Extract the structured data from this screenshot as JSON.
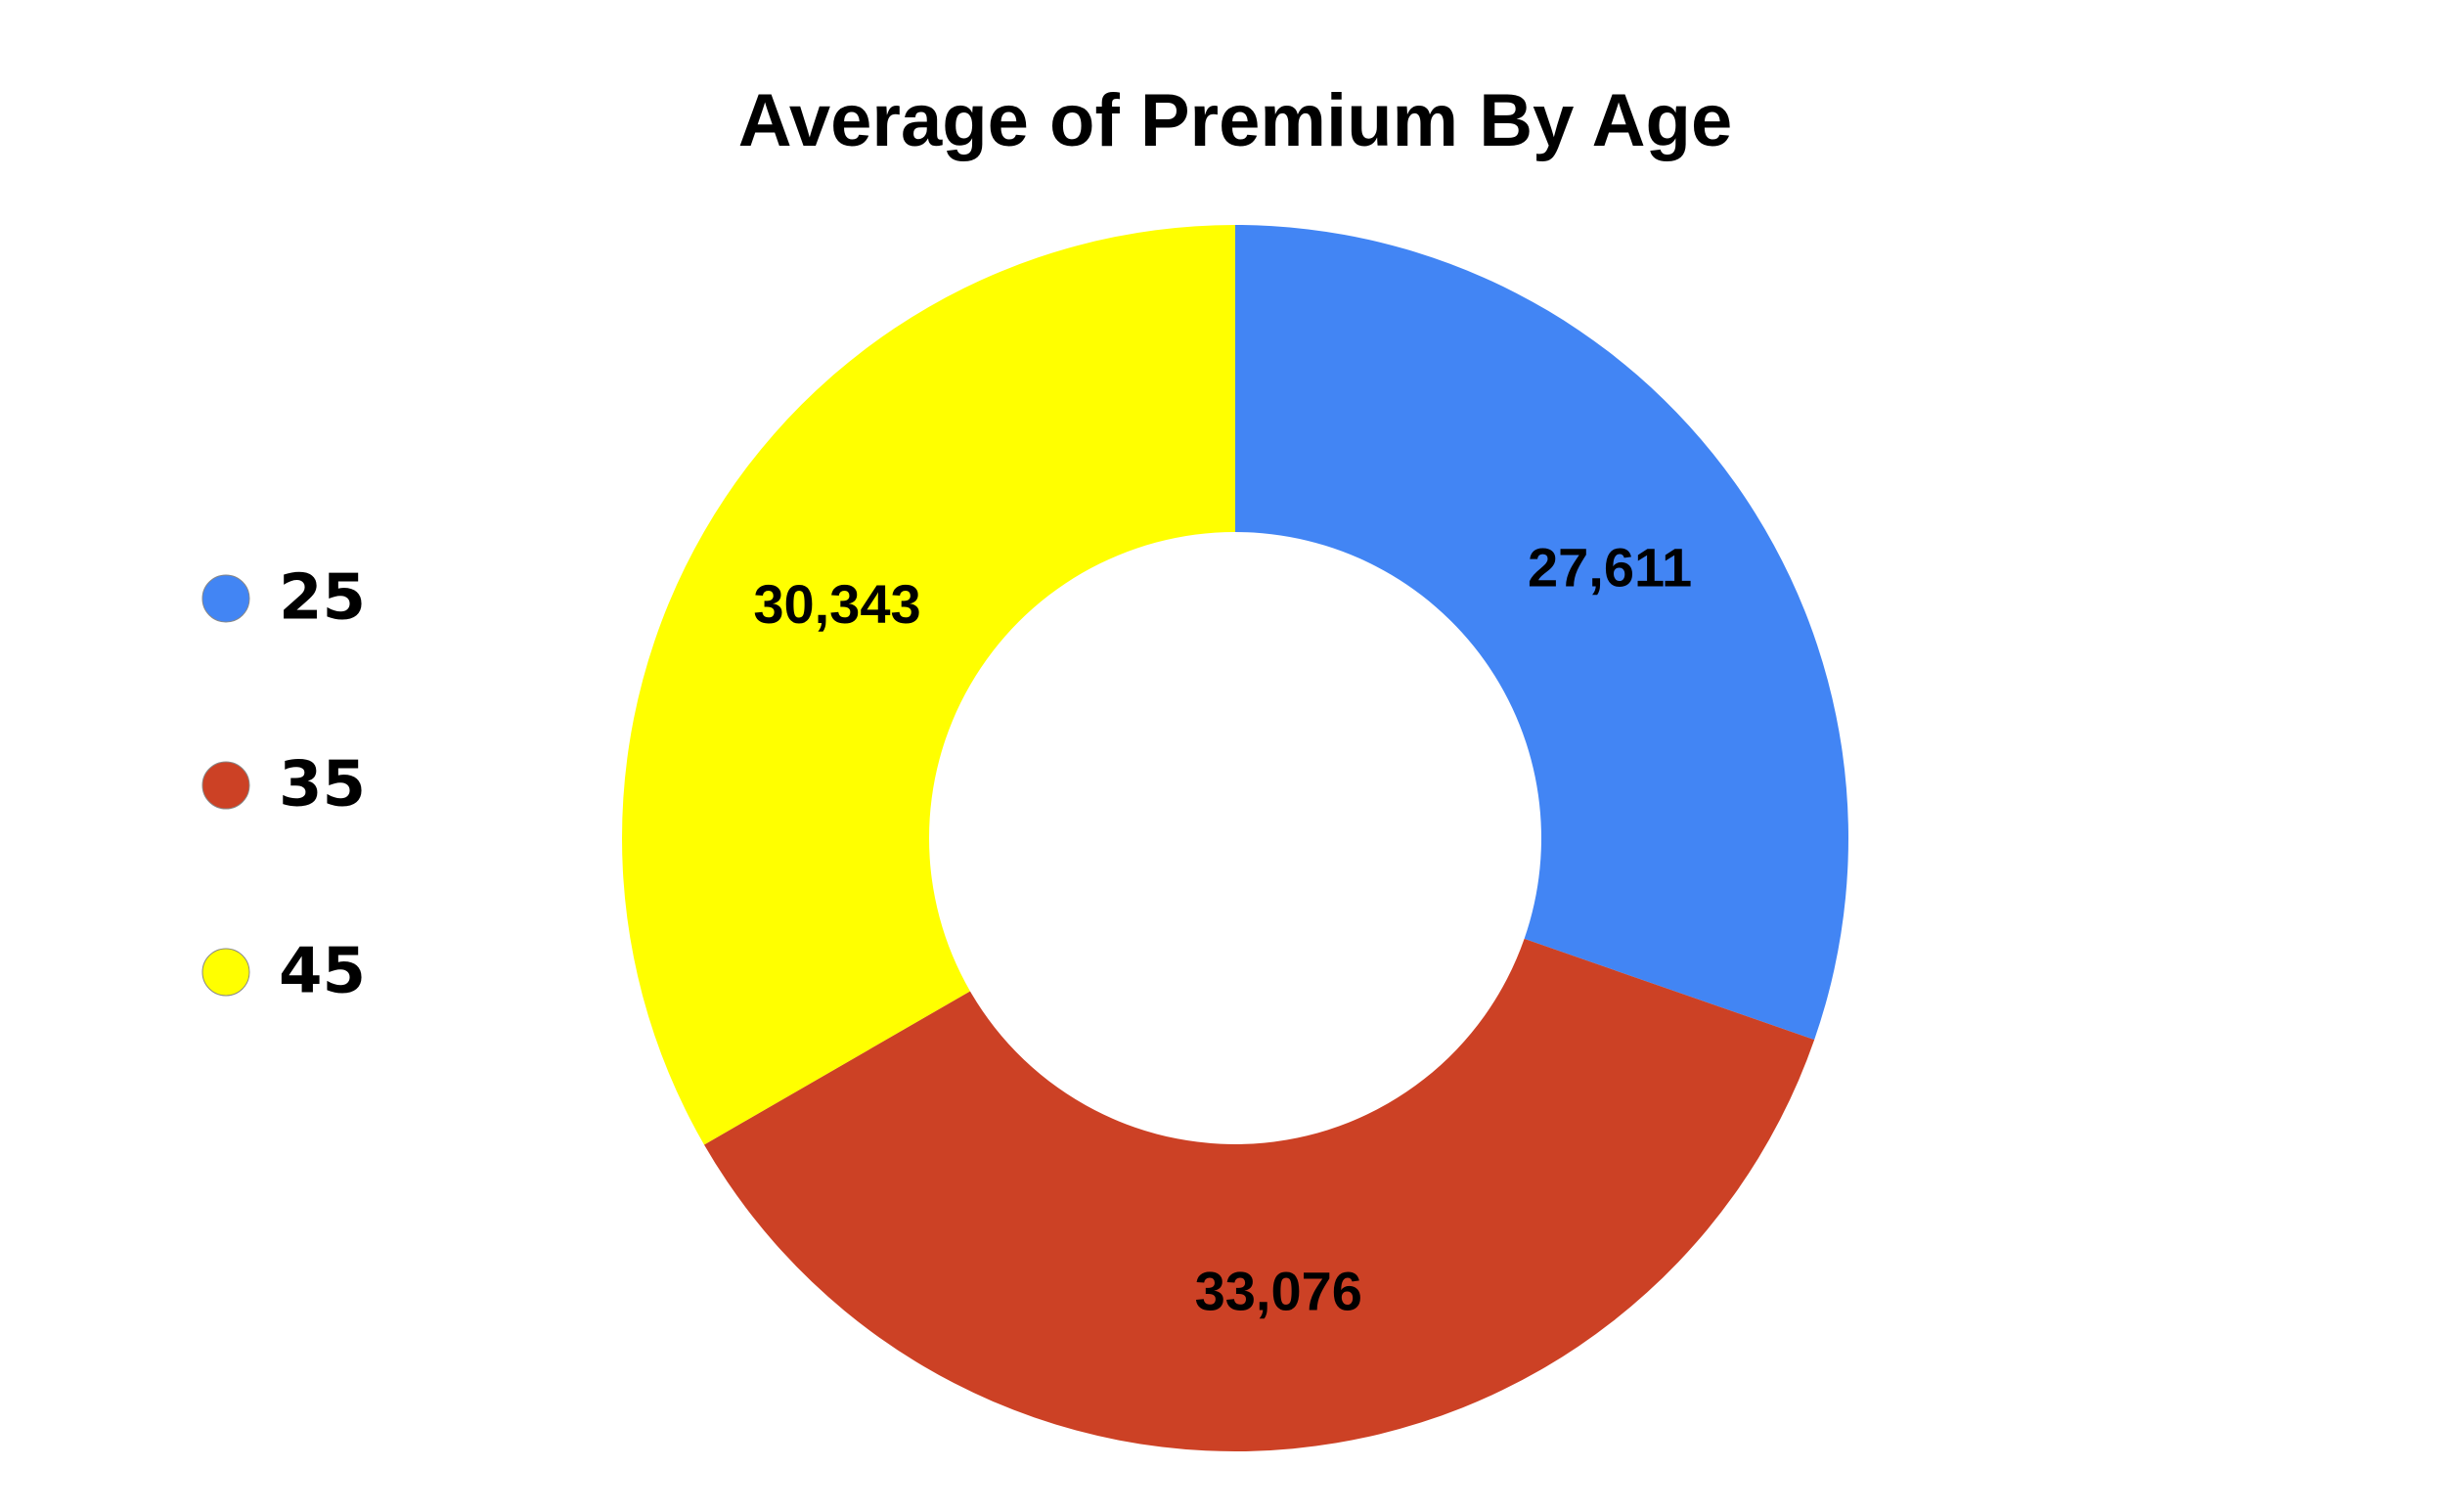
{
  "chart_data": {
    "type": "donut",
    "title": "Average of Premium By Age",
    "categories": [
      "25",
      "35",
      "45"
    ],
    "values": [
      27611,
      33076,
      30343
    ],
    "value_labels": [
      "27,611",
      "33,076",
      "30,343"
    ],
    "colors": [
      "#4285f4",
      "#cc4125",
      "#ffff00"
    ],
    "legend": "left"
  }
}
